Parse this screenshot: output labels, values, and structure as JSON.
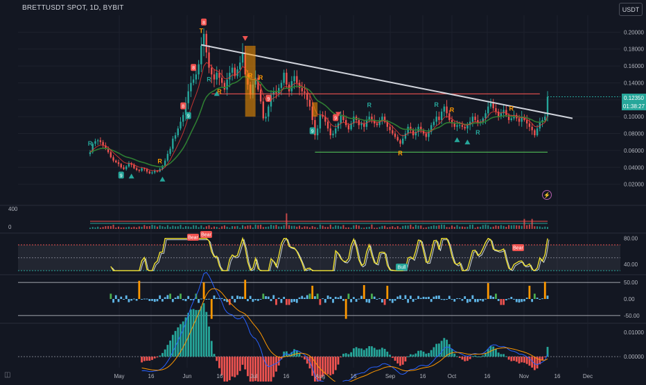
{
  "header": {
    "symbol": "BRETTUSDT SPOT, 1D, BYBIT",
    "currency_button": "USDT"
  },
  "colors": {
    "background": "#131722",
    "up": "#26a69a",
    "down": "#ef5350",
    "grid": "#2a2e39",
    "trendline": "#d1d4dc",
    "ma": "#2e7d32",
    "rsi": "#f0e130",
    "histogram_up": "#26a69a",
    "histogram_down": "#ef5350",
    "osc_neutral": "#5fb6e8",
    "osc_extreme": "#ff9800",
    "macd_line": "#2962ff",
    "signal_line": "#ff9800"
  },
  "tags": {
    "last_price": "0.12350",
    "countdown": "01:38:27"
  },
  "icons": {
    "tradingview": "tv-logo-icon",
    "alert": "lightning-icon"
  },
  "chart_data": [
    {
      "id": "price",
      "type": "candlestick",
      "ylim": [
        0.0,
        0.22
      ],
      "y_ticks": [
        "0.20000",
        "0.18000",
        "0.16000",
        "0.14000",
        "0.12000",
        "0.10000",
        "0.08000",
        "0.06000",
        "0.04000",
        "0.02000"
      ],
      "x_ticks": [
        "May",
        "16",
        "Jun",
        "16",
        "Jul",
        "16",
        "Aug",
        "16",
        "Sep",
        "16",
        "Oct",
        "16",
        "Nov",
        "16",
        "Dec"
      ],
      "start_date": "2024-04-21",
      "close": [
        0.058,
        0.068,
        0.071,
        0.072,
        0.07,
        0.066,
        0.062,
        0.058,
        0.052,
        0.048,
        0.046,
        0.044,
        0.04,
        0.038,
        0.041,
        0.045,
        0.043,
        0.039,
        0.037,
        0.036,
        0.039,
        0.038,
        0.035,
        0.033,
        0.034,
        0.036,
        0.035,
        0.038,
        0.042,
        0.048,
        0.056,
        0.062,
        0.074,
        0.078,
        0.086,
        0.094,
        0.102,
        0.116,
        0.13,
        0.14,
        0.144,
        0.15,
        0.162,
        0.184,
        0.198,
        0.176,
        0.158,
        0.15,
        0.144,
        0.152,
        0.146,
        0.14,
        0.132,
        0.144,
        0.152,
        0.158,
        0.148,
        0.156,
        0.164,
        0.176,
        0.15,
        0.138,
        0.126,
        0.138,
        0.146,
        0.132,
        0.118,
        0.098,
        0.1,
        0.112,
        0.126,
        0.13,
        0.128,
        0.134,
        0.14,
        0.152,
        0.138,
        0.13,
        0.142,
        0.148,
        0.14,
        0.134,
        0.13,
        0.128,
        0.12,
        0.112,
        0.096,
        0.078,
        0.086,
        0.102,
        0.1,
        0.094,
        0.086,
        0.078,
        0.08,
        0.086,
        0.092,
        0.102,
        0.096,
        0.09,
        0.085,
        0.092,
        0.1,
        0.096,
        0.09,
        0.092,
        0.088,
        0.096,
        0.1,
        0.096,
        0.092,
        0.09,
        0.095,
        0.1,
        0.094,
        0.088,
        0.084,
        0.08,
        0.076,
        0.072,
        0.068,
        0.074,
        0.08,
        0.088,
        0.084,
        0.078,
        0.082,
        0.088,
        0.084,
        0.08,
        0.076,
        0.082,
        0.09,
        0.094,
        0.1,
        0.096,
        0.106,
        0.112,
        0.104,
        0.096,
        0.092,
        0.088,
        0.09,
        0.09,
        0.088,
        0.086,
        0.09,
        0.094,
        0.1,
        0.096,
        0.092,
        0.094,
        0.098,
        0.104,
        0.112,
        0.116,
        0.11,
        0.106,
        0.1,
        0.104,
        0.108,
        0.102,
        0.096,
        0.098,
        0.102,
        0.098,
        0.094,
        0.1,
        0.096,
        0.092,
        0.088,
        0.084,
        0.078,
        0.086,
        0.094,
        0.096,
        0.1,
        0.1235
      ],
      "volume_ylim": [
        0,
        400
      ],
      "volume_ticks": [
        "400",
        "0"
      ],
      "annotations": {
        "resistance_level": 0.127,
        "support_level": 0.058,
        "trend_start": 0.185,
        "trend_end": 0.098,
        "markers": [
          "9",
          "R",
          "8",
          "9",
          "T",
          "8",
          "R",
          "R",
          "8",
          "R",
          "9",
          "R",
          "9",
          "9",
          "R",
          "R",
          "R",
          "R",
          "R",
          "R",
          "R"
        ]
      }
    },
    {
      "id": "rsi",
      "type": "line",
      "ylim": [
        28,
        84
      ],
      "y_ticks": [
        "80.00",
        "40.00"
      ],
      "labels": [
        "Bear",
        "Bear",
        "Bull",
        "Bear"
      ]
    },
    {
      "id": "oscillator",
      "type": "bar",
      "ylim": [
        -65,
        65
      ],
      "y_ticks": [
        "50.00",
        "0.00",
        "-50.00"
      ]
    },
    {
      "id": "macd",
      "type": "bar",
      "ylim": [
        -0.0045,
        0.0125
      ],
      "y_ticks": [
        "0.01000",
        "0.00000"
      ]
    }
  ]
}
